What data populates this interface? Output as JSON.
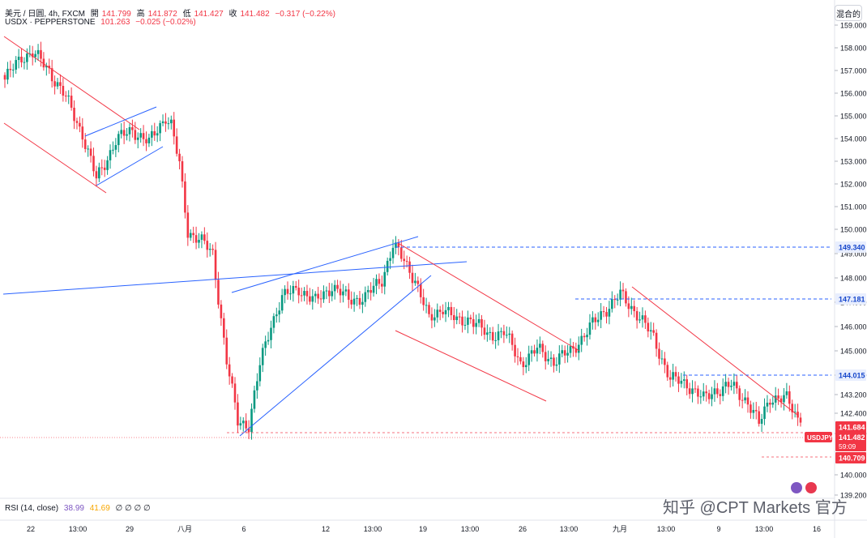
{
  "legend": {
    "symbol": "美元 / 日圆, 4h, FXCM",
    "open_label": "開",
    "open": "141.799",
    "high_label": "高",
    "high": "141.872",
    "low_label": "低",
    "low": "141.427",
    "close_label": "收",
    "close": "141.482",
    "change": "−0.317 (−0.22%)",
    "compare_symbol": "USDX · PEPPERSTONE",
    "compare_value": "101.263",
    "compare_change": "−0.025 (−0.02%)"
  },
  "scale_button": "混合的",
  "rsi": {
    "label": "RSI (14, close)",
    "v1": "38.99",
    "v2": "41.69",
    "zeros": "∅ ∅ ∅ ∅"
  },
  "watermark": "知乎 @CPT Markets 官方",
  "colors": {
    "up": "#089981",
    "down": "#f23645",
    "line": "#2962ff",
    "channel": "#f23645"
  },
  "chart_data": {
    "type": "candlestick",
    "symbol": "USDJPY",
    "timeframe": "4h",
    "y_ticks": [
      "159.000",
      "158.000",
      "157.000",
      "156.000",
      "155.000",
      "154.000",
      "153.000",
      "152.000",
      "151.000",
      "150.000",
      "149.000",
      "148.000",
      "147.000",
      "146.000",
      "145.000",
      "144.000",
      "143.200",
      "142.400",
      "141.600",
      "140.000",
      "139.200"
    ],
    "x_ticks": [
      "22",
      "13:00",
      "29",
      "八月",
      "6",
      "12",
      "13:00",
      "19",
      "13:00",
      "26",
      "13:00",
      "九月",
      "13:00",
      "9",
      "13:00",
      "16"
    ],
    "price_tags": [
      {
        "label": "149.340",
        "kind": "line"
      },
      {
        "label": "147.181",
        "kind": "line"
      },
      {
        "label": "144.015",
        "kind": "line"
      },
      {
        "label": "141.684",
        "kind": "last"
      },
      {
        "label": "USDJPY",
        "kind": "symbol"
      },
      {
        "label": "141.482",
        "kind": "last"
      },
      {
        "label": "59:09",
        "kind": "timer"
      },
      {
        "label": "140.709",
        "kind": "last"
      }
    ],
    "anchors": [
      [
        0,
        156.6
      ],
      [
        6,
        157.6
      ],
      [
        10,
        157.8
      ],
      [
        16,
        157.0
      ],
      [
        22,
        155.8
      ],
      [
        28,
        154.2
      ],
      [
        33,
        152.2
      ],
      [
        40,
        153.9
      ],
      [
        46,
        154.4
      ],
      [
        52,
        153.8
      ],
      [
        58,
        155.0
      ],
      [
        60,
        154.6
      ],
      [
        63,
        152.8
      ],
      [
        66,
        149.9
      ],
      [
        70,
        149.6
      ],
      [
        75,
        148.9
      ],
      [
        80,
        144.2
      ],
      [
        84,
        141.5
      ],
      [
        88,
        141.4
      ],
      [
        92,
        144.0
      ],
      [
        96,
        145.8
      ],
      [
        100,
        147.0
      ],
      [
        106,
        147.4
      ],
      [
        112,
        146.8
      ],
      [
        118,
        147.5
      ],
      [
        124,
        146.9
      ],
      [
        130,
        147.0
      ],
      [
        136,
        147.8
      ],
      [
        140,
        149.3
      ],
      [
        144,
        148.6
      ],
      [
        148,
        147.8
      ],
      [
        153,
        146.0
      ],
      [
        158,
        146.6
      ],
      [
        163,
        145.9
      ],
      [
        168,
        146.1
      ],
      [
        174,
        145.3
      ],
      [
        180,
        145.5
      ],
      [
        186,
        144.1
      ],
      [
        192,
        144.7
      ],
      [
        198,
        144.2
      ],
      [
        204,
        144.6
      ],
      [
        210,
        145.5
      ],
      [
        216,
        146.4
      ],
      [
        222,
        147.1
      ],
      [
        228,
        146.3
      ],
      [
        234,
        145.2
      ],
      [
        240,
        143.4
      ],
      [
        246,
        143.2
      ],
      [
        252,
        142.5
      ],
      [
        256,
        142.9
      ],
      [
        262,
        143.1
      ],
      [
        268,
        142.4
      ],
      [
        272,
        141.4
      ],
      [
        276,
        142.6
      ],
      [
        282,
        142.5
      ],
      [
        287,
        141.48
      ]
    ]
  }
}
